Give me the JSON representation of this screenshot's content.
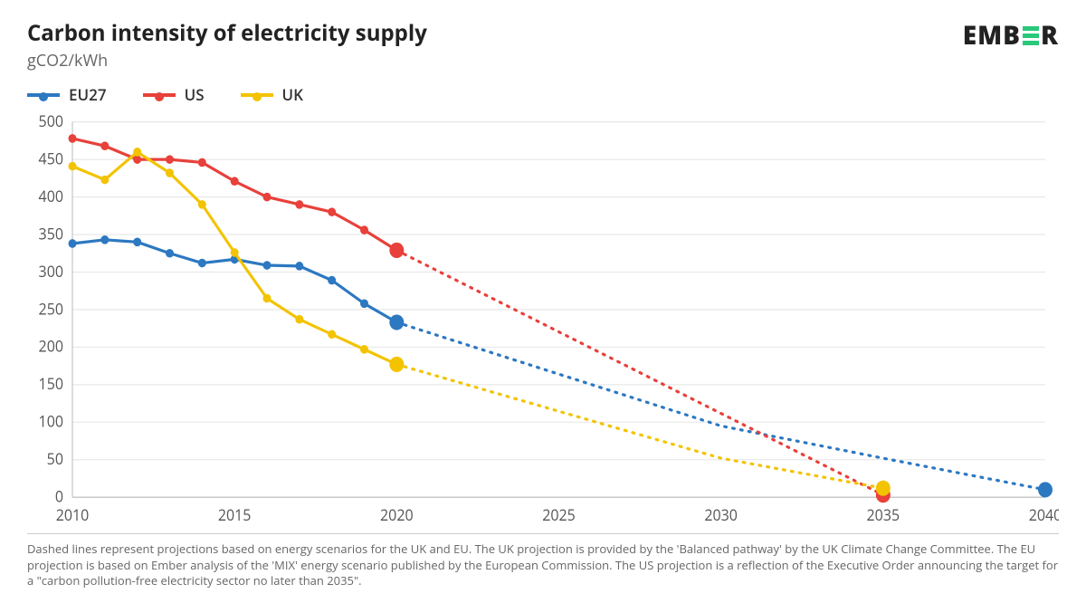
{
  "header": {
    "title": "Carbon intensity of electricity supply",
    "subtitle": "gCO2/kWh",
    "logo_text_left": "EMB",
    "logo_text_right": "R",
    "logo_bar_color": "#29c87a"
  },
  "legend": {
    "items": [
      {
        "label": "EU27",
        "color": "#2c78c1"
      },
      {
        "label": "US",
        "color": "#e8403a"
      },
      {
        "label": "UK",
        "color": "#f3c300"
      }
    ]
  },
  "chart": {
    "type": "line",
    "background_color": "#ffffff",
    "grid_color": "#e5e5e5",
    "axis_color": "#bbbbbb",
    "tick_fontsize": 16,
    "xlim": [
      2010,
      2040
    ],
    "ylim": [
      0,
      500
    ],
    "xticks": [
      2010,
      2015,
      2020,
      2025,
      2030,
      2035,
      2040
    ],
    "yticks": [
      0,
      50,
      100,
      150,
      200,
      250,
      300,
      350,
      400,
      450,
      500
    ],
    "line_width_solid": 3,
    "line_width_dashed": 3,
    "dash_pattern": "2 7",
    "marker_radius_small": 4.5,
    "marker_radius_big": 8,
    "series": [
      {
        "name": "EU27",
        "color": "#2c78c1",
        "solid": [
          {
            "x": 2010,
            "y": 338
          },
          {
            "x": 2011,
            "y": 343
          },
          {
            "x": 2012,
            "y": 340
          },
          {
            "x": 2013,
            "y": 325
          },
          {
            "x": 2014,
            "y": 312
          },
          {
            "x": 2015,
            "y": 317
          },
          {
            "x": 2016,
            "y": 309
          },
          {
            "x": 2017,
            "y": 308
          },
          {
            "x": 2018,
            "y": 289
          },
          {
            "x": 2019,
            "y": 258
          },
          {
            "x": 2020,
            "y": 233
          }
        ],
        "dashed": [
          {
            "x": 2020,
            "y": 233
          },
          {
            "x": 2030,
            "y": 95
          },
          {
            "x": 2035,
            "y": 52
          },
          {
            "x": 2040,
            "y": 10
          }
        ],
        "big_markers": [
          {
            "x": 2020,
            "y": 233
          },
          {
            "x": 2040,
            "y": 10
          }
        ]
      },
      {
        "name": "US",
        "color": "#e8403a",
        "solid": [
          {
            "x": 2010,
            "y": 478
          },
          {
            "x": 2011,
            "y": 468
          },
          {
            "x": 2012,
            "y": 450
          },
          {
            "x": 2013,
            "y": 450
          },
          {
            "x": 2014,
            "y": 446
          },
          {
            "x": 2015,
            "y": 421
          },
          {
            "x": 2016,
            "y": 400
          },
          {
            "x": 2017,
            "y": 390
          },
          {
            "x": 2018,
            "y": 380
          },
          {
            "x": 2019,
            "y": 356
          },
          {
            "x": 2020,
            "y": 329
          }
        ],
        "dashed": [
          {
            "x": 2020,
            "y": 329
          },
          {
            "x": 2035,
            "y": 3
          }
        ],
        "big_markers": [
          {
            "x": 2020,
            "y": 329
          },
          {
            "x": 2035,
            "y": 3
          }
        ]
      },
      {
        "name": "UK",
        "color": "#f3c300",
        "solid": [
          {
            "x": 2010,
            "y": 441
          },
          {
            "x": 2011,
            "y": 423
          },
          {
            "x": 2012,
            "y": 460
          },
          {
            "x": 2013,
            "y": 432
          },
          {
            "x": 2014,
            "y": 390
          },
          {
            "x": 2015,
            "y": 326
          },
          {
            "x": 2016,
            "y": 265
          },
          {
            "x": 2017,
            "y": 237
          },
          {
            "x": 2018,
            "y": 217
          },
          {
            "x": 2019,
            "y": 197
          },
          {
            "x": 2020,
            "y": 177
          }
        ],
        "dashed": [
          {
            "x": 2020,
            "y": 177
          },
          {
            "x": 2030,
            "y": 52
          },
          {
            "x": 2035,
            "y": 12
          }
        ],
        "big_markers": [
          {
            "x": 2020,
            "y": 177
          },
          {
            "x": 2035,
            "y": 12
          }
        ]
      }
    ]
  },
  "footnote": "Dashed lines represent projections based on energy scenarios for the UK and EU. The UK projection is provided by the 'Balanced pathway' by the UK Climate Change Committee. The EU projection is based on Ember analysis of the 'MIX' energy scenario published by the European Commission. The US projection is a reflection of the Executive Order announcing the target for a \"carbon pollution-free electricity sector no later than 2035\"."
}
